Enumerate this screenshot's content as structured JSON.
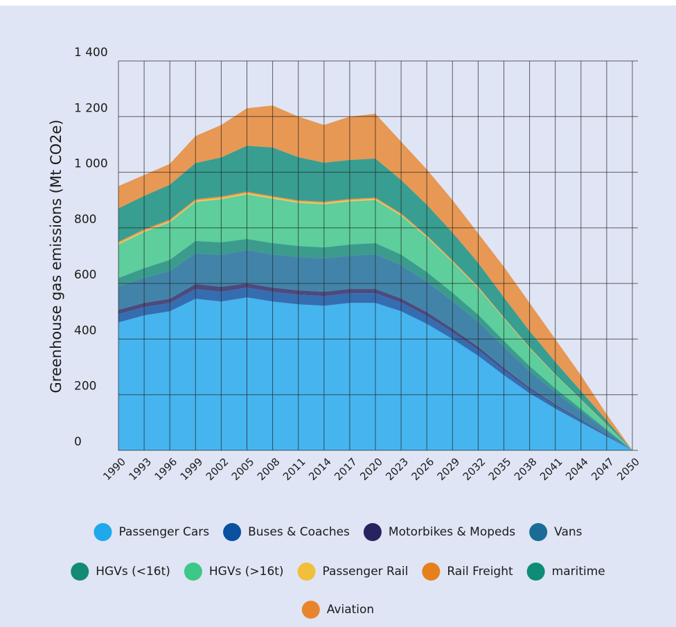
{
  "chart_data": {
    "type": "stacked_area",
    "y_label": "Greenhouse gas emissions (Mt CO2e)",
    "x": [
      1990,
      1993,
      1996,
      1999,
      2002,
      2005,
      2008,
      2011,
      2014,
      2017,
      2020,
      2023,
      2026,
      2029,
      2032,
      2035,
      2038,
      2041,
      2044,
      2047,
      2050
    ],
    "xlim": [
      1990,
      2050
    ],
    "xticks": [
      1990,
      1993,
      1996,
      1999,
      2002,
      2005,
      2008,
      2011,
      2014,
      2017,
      2020,
      2023,
      2026,
      2029,
      2032,
      2035,
      2038,
      2041,
      2044,
      2047,
      2050
    ],
    "ylim": [
      0,
      1400
    ],
    "yticks": [
      0,
      200,
      400,
      600,
      800,
      {
        "value": 1000,
        "label": "1 000"
      },
      {
        "value": 1200,
        "label": "1 200"
      },
      {
        "value": 1400,
        "label": "1 400"
      }
    ],
    "grid": true,
    "series": [
      {
        "name": "Passenger Cars",
        "color": "#1fa8ec",
        "values": [
          460,
          485,
          500,
          545,
          535,
          550,
          535,
          525,
          520,
          530,
          530,
          500,
          455,
          400,
          340,
          270,
          205,
          150,
          100,
          50,
          0
        ]
      },
      {
        "name": "Buses & Coaches",
        "color": "#0a4fa0",
        "values": [
          30,
          30,
          30,
          35,
          35,
          35,
          35,
          35,
          35,
          35,
          35,
          32,
          29,
          25,
          22,
          18,
          14,
          10,
          7,
          3,
          0
        ]
      },
      {
        "name": "Motorbikes & Mopeds",
        "color": "#28235e",
        "values": [
          15,
          15,
          15,
          18,
          18,
          15,
          15,
          15,
          15,
          15,
          15,
          14,
          13,
          12,
          10,
          8,
          6,
          5,
          3,
          2,
          0
        ]
      },
      {
        "name": "Vans",
        "color": "#1a6c96",
        "values": [
          85,
          90,
          100,
          110,
          115,
          120,
          120,
          120,
          120,
          120,
          125,
          120,
          110,
          100,
          90,
          76,
          60,
          45,
          30,
          15,
          0
        ]
      },
      {
        "name": "HGVs (<16t)",
        "color": "#128a74",
        "values": [
          30,
          35,
          40,
          45,
          45,
          40,
          40,
          40,
          40,
          40,
          40,
          38,
          34,
          30,
          26,
          22,
          18,
          13,
          9,
          5,
          0
        ]
      },
      {
        "name": "HGVs (>16t)",
        "color": "#3cc886",
        "values": [
          120,
          130,
          135,
          140,
          155,
          160,
          160,
          155,
          155,
          155,
          155,
          140,
          125,
          110,
          95,
          80,
          64,
          48,
          32,
          16,
          0
        ]
      },
      {
        "name": "Passenger Rail",
        "color": "#f2bf3c",
        "values": [
          5,
          5,
          5,
          5,
          5,
          5,
          5,
          5,
          5,
          5,
          5,
          4,
          4,
          3,
          3,
          2,
          2,
          1,
          1,
          1,
          0
        ]
      },
      {
        "name": "Rail Freight",
        "color": "#e5801c",
        "values": [
          5,
          5,
          5,
          5,
          5,
          5,
          4,
          4,
          4,
          4,
          4,
          4,
          3,
          3,
          3,
          2,
          2,
          1,
          1,
          1,
          0
        ]
      },
      {
        "name": "maritime",
        "color": "#0e8c78",
        "values": [
          120,
          120,
          125,
          130,
          140,
          165,
          175,
          155,
          140,
          140,
          140,
          120,
          110,
          100,
          85,
          72,
          58,
          45,
          30,
          15,
          0
        ]
      },
      {
        "name": "Aviation",
        "color": "#e8852c",
        "values": [
          80,
          75,
          75,
          97,
          117,
          135,
          151,
          146,
          136,
          156,
          161,
          138,
          127,
          117,
          106,
          110,
          101,
          82,
          57,
          22,
          0
        ]
      }
    ]
  }
}
